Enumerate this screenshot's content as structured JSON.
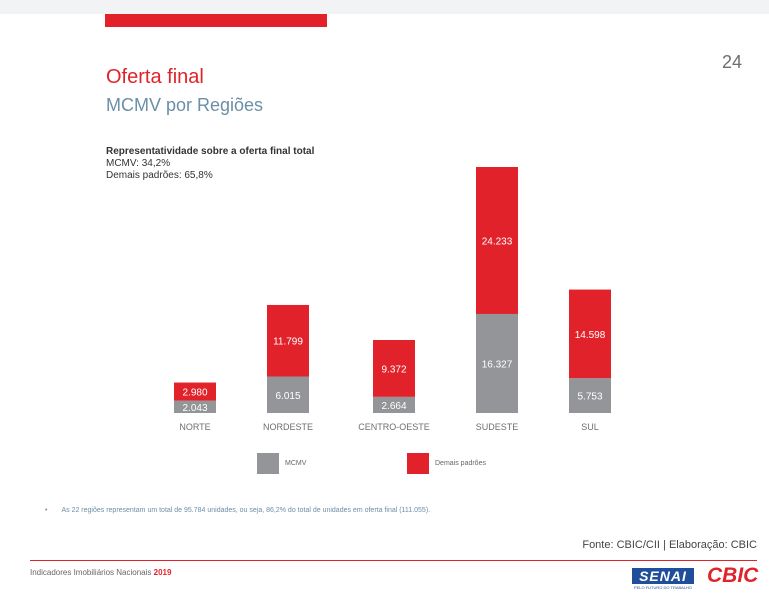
{
  "page_number": "24",
  "header": {
    "title": "Oferta final",
    "subtitle": "MCMV por Regiões"
  },
  "representativeness": {
    "heading": "Representatividade sobre a oferta final total",
    "line1": "MCMV: 34,2%",
    "line2": "Demais padrões: 65,8%"
  },
  "colors": {
    "accent": "#e2222a",
    "mcmv": "#949598",
    "demais": "#e2222a"
  },
  "chart_data": {
    "type": "bar",
    "stacked": true,
    "categories": [
      "NORTE",
      "NORDESTE",
      "CENTRO-OESTE",
      "SUDESTE",
      "SUL"
    ],
    "series": [
      {
        "name": "MCMV",
        "values": [
          2043,
          6015,
          2664,
          16327,
          5753
        ],
        "labels": [
          "2.043",
          "6.015",
          "2.664",
          "16.327",
          "5.753"
        ]
      },
      {
        "name": "Demais padrões",
        "values": [
          2980,
          11799,
          9372,
          24233,
          14598
        ],
        "labels": [
          "2.980",
          "11.799",
          "9.372",
          "24.233",
          "14.598"
        ]
      }
    ],
    "legend_position": "bottom",
    "grid": false
  },
  "legend": {
    "mcmv": "MCMV",
    "demais": "Demais padrões"
  },
  "footnote": {
    "bullet": "•",
    "text": "As 22 regiões representam um total de 95.784 unidades, ou seja, 86,2% do total de unidades em oferta final (111.055)."
  },
  "source": "Fonte: CBIC/CII | Elaboração: CBIC",
  "footer": {
    "label": "Indicadores Imobiliários Nacionais",
    "year": "2019",
    "senai_logo": "SENAI",
    "senai_tagline": "PELO FUTURO DO TRABALHO",
    "cbic_logo": "CBIC"
  }
}
